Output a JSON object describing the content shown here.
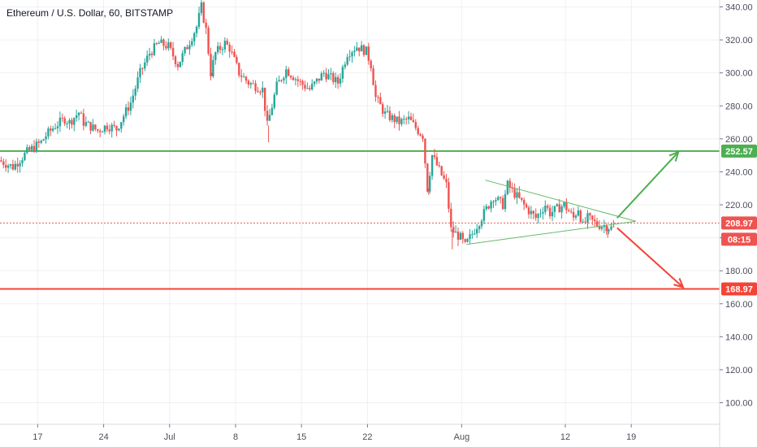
{
  "header": {
    "title": "Ethereum / U.S. Dollar, 60, BITSTAMP"
  },
  "colors": {
    "up": "#26a69a",
    "down": "#ef5350",
    "green_line": "#4caf50",
    "red_line": "#f44336",
    "last_price": "#ef5350",
    "grid": "#edf0f3",
    "axis": "#787b86",
    "triangle": "#66bb6a"
  },
  "chart_data": {
    "type": "candlestick",
    "title": "Ethereum / U.S. Dollar, 60, BITSTAMP",
    "ylim": [
      90,
      344
    ],
    "y_ticks": [
      "100.00",
      "120.00",
      "140.00",
      "160.00",
      "180.00",
      "200.00",
      "220.00",
      "240.00",
      "260.00",
      "280.00",
      "300.00",
      "320.00",
      "340.00"
    ],
    "x_ticks": [
      "17",
      "24",
      "Jul",
      "8",
      "15",
      "22",
      "Aug",
      "12",
      "19"
    ],
    "x_range": [
      "Jun 13",
      "Aug 27"
    ],
    "grid": true,
    "horizontal_levels": [
      {
        "label": "252.57",
        "value": 252.57,
        "color": "green"
      },
      {
        "label": "168.97",
        "value": 168.97,
        "color": "red"
      }
    ],
    "last_price": {
      "label": "208.97",
      "value": 208.97
    },
    "countdown": "08:15",
    "price_path": [
      [
        0.0,
        247
      ],
      [
        1.5,
        243
      ],
      [
        3.0,
        252
      ],
      [
        4.5,
        258
      ],
      [
        5.0,
        262
      ],
      [
        6.0,
        268
      ],
      [
        7.0,
        272
      ],
      [
        7.5,
        270
      ],
      [
        8.5,
        276
      ],
      [
        9.0,
        270
      ],
      [
        10.5,
        265
      ],
      [
        11.5,
        268
      ],
      [
        12.5,
        266
      ],
      [
        14.0,
        282
      ],
      [
        15.0,
        300
      ],
      [
        16.0,
        312
      ],
      [
        17.0,
        318
      ],
      [
        18.0,
        316
      ],
      [
        19.0,
        305
      ],
      [
        20.0,
        316
      ],
      [
        21.0,
        328
      ],
      [
        21.5,
        340
      ],
      [
        22.0,
        326
      ],
      [
        22.5,
        300
      ],
      [
        23.0,
        312
      ],
      [
        24.0,
        318
      ],
      [
        24.5,
        315
      ],
      [
        25.5,
        300
      ],
      [
        26.5,
        294
      ],
      [
        28.0,
        290
      ],
      [
        28.5,
        268
      ],
      [
        29.5,
        292
      ],
      [
        30.5,
        302
      ],
      [
        32.0,
        294
      ],
      [
        33.0,
        290
      ],
      [
        34.5,
        300
      ],
      [
        36.0,
        294
      ],
      [
        37.0,
        312
      ],
      [
        38.0,
        316
      ],
      [
        39.0,
        313
      ],
      [
        39.5,
        305
      ],
      [
        40.0,
        285
      ],
      [
        41.0,
        275
      ],
      [
        42.5,
        270
      ],
      [
        43.5,
        272
      ],
      [
        44.5,
        265
      ],
      [
        45.0,
        262
      ],
      [
        45.5,
        230
      ],
      [
        46.0,
        250
      ],
      [
        47.5,
        232
      ],
      [
        48.0,
        205
      ],
      [
        49.0,
        200
      ],
      [
        49.5,
        195
      ],
      [
        50.5,
        205
      ],
      [
        51.5,
        215
      ],
      [
        52.5,
        225
      ],
      [
        53.5,
        220
      ],
      [
        54.0,
        232
      ],
      [
        55.0,
        225
      ],
      [
        56.0,
        218
      ],
      [
        57.0,
        212
      ],
      [
        58.0,
        220
      ],
      [
        58.5,
        215
      ],
      [
        60.0,
        220
      ],
      [
        61.0,
        212
      ],
      [
        61.5,
        218
      ],
      [
        62.0,
        207
      ],
      [
        62.5,
        212
      ],
      [
        63.5,
        208
      ],
      [
        64.5,
        207
      ],
      [
        65.0,
        206
      ]
    ],
    "annotations": {
      "triangle_upper": [
        [
          51.5,
          235
        ],
        [
          67.5,
          210
        ]
      ],
      "triangle_lower": [
        [
          49.5,
          196
        ],
        [
          67.5,
          210
        ]
      ],
      "arrow_up": {
        "from": [
          65.5,
          212
        ],
        "to": [
          72.0,
          252
        ]
      },
      "arrow_down": {
        "from": [
          65.5,
          206
        ],
        "to": [
          72.5,
          170
        ]
      }
    }
  }
}
